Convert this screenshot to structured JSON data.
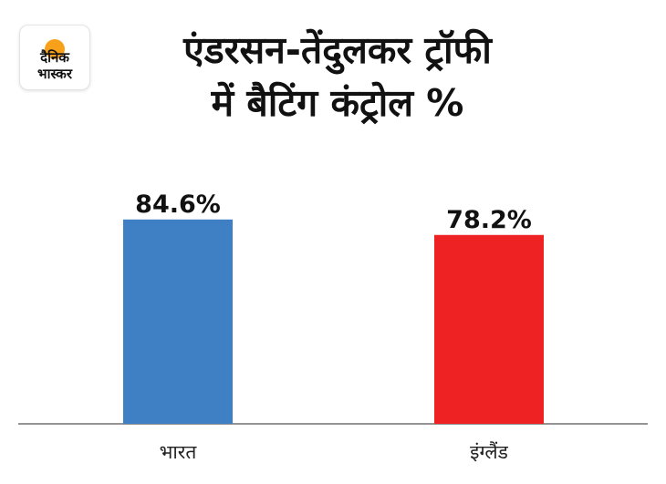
{
  "brand": {
    "name": "दैनिक भास्कर",
    "line1": "दैनिक",
    "line2": "भास्कर",
    "sun_color": "#f7a11a"
  },
  "title": {
    "line1": "एंडरसन-तेंदुलकर ट्रॉफी",
    "line2": "में बैटिंग कंट्रोल %"
  },
  "chart_data": {
    "type": "bar",
    "title": "एंडरसन-तेंदुलकर ट्रॉफी में बैटिंग कंट्रोल %",
    "categories": [
      "भारत",
      "इंग्लैंड"
    ],
    "values": [
      84.6,
      78.2
    ],
    "value_labels": [
      "84.6%",
      "78.2%"
    ],
    "colors": [
      "#3f7fc4",
      "#ee2222"
    ],
    "xlabel": "",
    "ylabel": "",
    "ylim": [
      0,
      100
    ],
    "grid": false,
    "legend": "none"
  }
}
